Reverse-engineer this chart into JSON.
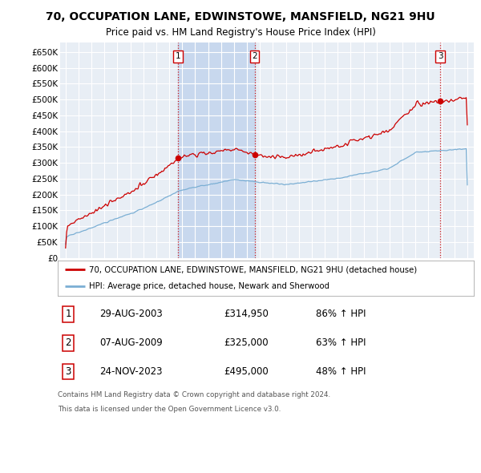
{
  "title_line1": "70, OCCUPATION LANE, EDWINSTOWE, MANSFIELD, NG21 9HU",
  "title_line2": "Price paid vs. HM Land Registry's House Price Index (HPI)",
  "legend_line1": "70, OCCUPATION LANE, EDWINSTOWE, MANSFIELD, NG21 9HU (detached house)",
  "legend_line2": "HPI: Average price, detached house, Newark and Sherwood",
  "footer_line1": "Contains HM Land Registry data © Crown copyright and database right 2024.",
  "footer_line2": "This data is licensed under the Open Government Licence v3.0.",
  "sale_color": "#cc0000",
  "hpi_color": "#7bafd4",
  "background_color": "#ffffff",
  "plot_bg_color": "#e8eef5",
  "grid_color": "#ffffff",
  "shade_color": "#c8d8ee",
  "ylim_min": 0,
  "ylim_max": 680000,
  "yticks": [
    0,
    50000,
    100000,
    150000,
    200000,
    250000,
    300000,
    350000,
    400000,
    450000,
    500000,
    550000,
    600000,
    650000
  ],
  "ytick_labels": [
    "£0",
    "£50K",
    "£100K",
    "£150K",
    "£200K",
    "£250K",
    "£300K",
    "£350K",
    "£400K",
    "£450K",
    "£500K",
    "£550K",
    "£600K",
    "£650K"
  ],
  "purchases": [
    {
      "label": "1",
      "date": "29-AUG-2003",
      "price": 314950,
      "pct": "86%",
      "year": 2003.667
    },
    {
      "label": "2",
      "date": "07-AUG-2009",
      "price": 325000,
      "pct": "63%",
      "year": 2009.583
    },
    {
      "label": "3",
      "date": "24-NOV-2023",
      "price": 495000,
      "pct": "48%",
      "year": 2023.9
    }
  ],
  "vline_color": "#cc0000",
  "num_box_color": "#cc0000",
  "xlim_min": 1994.58,
  "xlim_max": 2026.5,
  "x_start_year": 1995,
  "x_end_year": 2026
}
